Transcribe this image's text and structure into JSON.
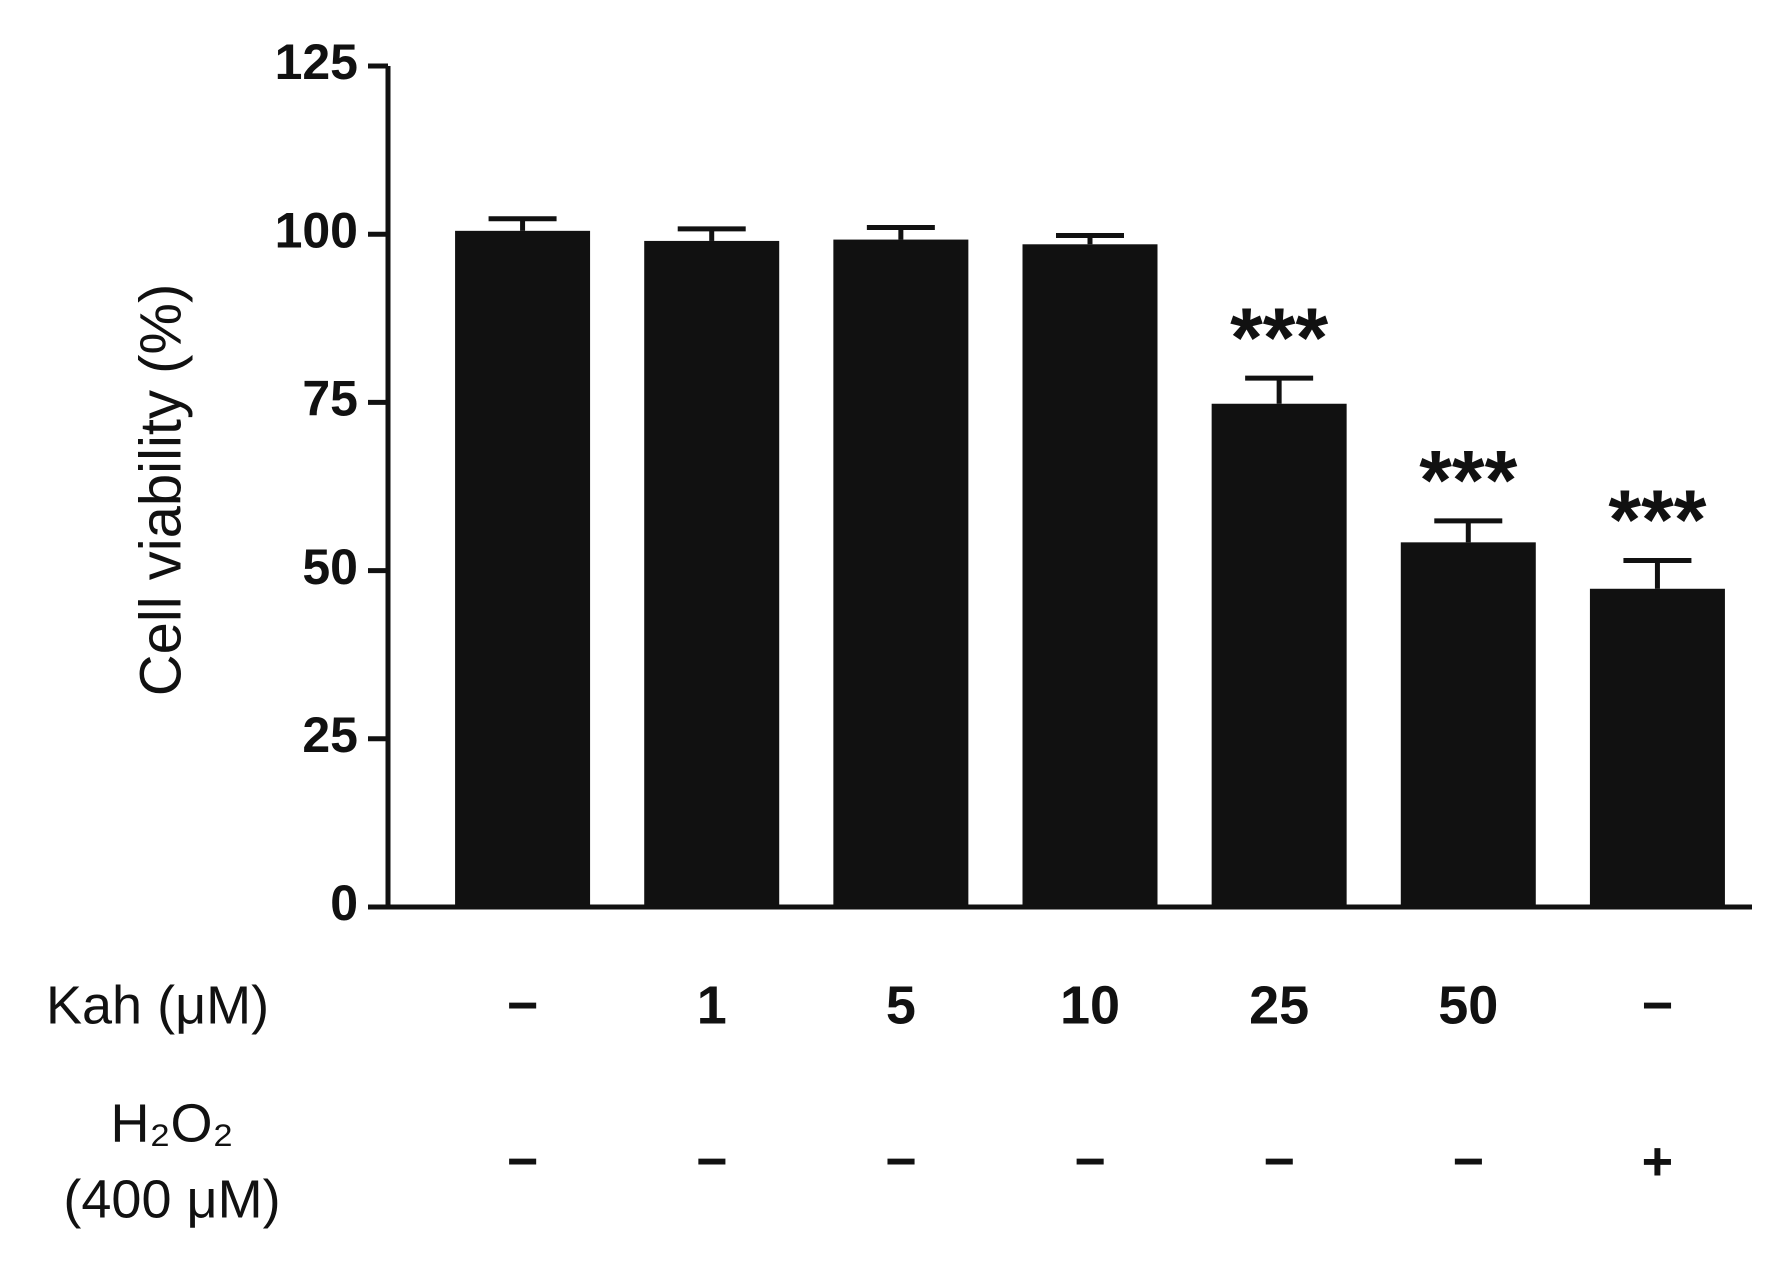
{
  "chart_data": {
    "type": "bar",
    "ylabel": "Cell viability (%)",
    "ylim": [
      0,
      125
    ],
    "yticks": [
      0,
      25,
      50,
      75,
      100,
      125
    ],
    "values": [
      100.5,
      99,
      99.2,
      98.5,
      74.8,
      54.2,
      47.3
    ],
    "errors": [
      1.8,
      1.8,
      1.8,
      1.3,
      3.8,
      3.2,
      4.2
    ],
    "annotations": [
      null,
      null,
      null,
      null,
      "***",
      "***",
      "***"
    ],
    "color": "#111111",
    "rows": [
      {
        "label": [
          "Kah (μM)"
        ],
        "values": [
          "−",
          "1",
          "5",
          "10",
          "25",
          "50",
          "−"
        ]
      },
      {
        "label": [
          "H₂O₂",
          "(400 μM)"
        ],
        "values": [
          "−",
          "−",
          "−",
          "−",
          "−",
          "−",
          "+"
        ]
      }
    ]
  }
}
